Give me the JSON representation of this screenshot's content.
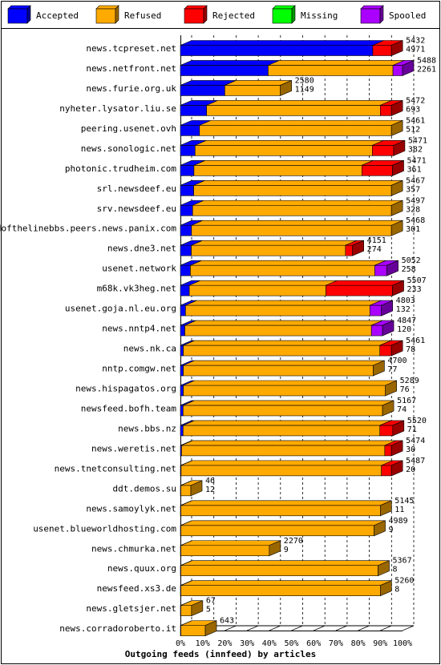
{
  "chart_data": {
    "type": "bar",
    "orientation": "horizontal",
    "stacked": true,
    "xlabel": "Outgoing feeds (innfeed) by articles",
    "xlim": [
      0,
      100
    ],
    "x_ticks": [
      "0%",
      "10%",
      "20%",
      "30%",
      "40%",
      "50%",
      "60%",
      "70%",
      "80%",
      "90%",
      "100%"
    ],
    "grid": true,
    "legend_position": "top",
    "legend": [
      {
        "name": "Accepted",
        "color": "#0000ff"
      },
      {
        "name": "Refused",
        "color": "#ffaa00"
      },
      {
        "name": "Rejected",
        "color": "#ff0000"
      },
      {
        "name": "Missing",
        "color": "#00ff00"
      },
      {
        "name": "Spooled",
        "color": "#aa00ff"
      }
    ],
    "rows": [
      {
        "name": "news.tcpreset.net",
        "total": "5432",
        "accepted": "4971",
        "segments": [
          86.6,
          0.0,
          8.4,
          0,
          0
        ]
      },
      {
        "name": "news.netfront.net",
        "total": "5488",
        "accepted": "2261",
        "segments": [
          39.5,
          56.2,
          0.0,
          0,
          4.3
        ]
      },
      {
        "name": "news.furie.org.uk",
        "total": "2580",
        "accepted": "1149",
        "segments": [
          20.0,
          25.0,
          0.0,
          0,
          0
        ]
      },
      {
        "name": "nyheter.lysator.liu.se",
        "total": "5472",
        "accepted": "693",
        "segments": [
          11.8,
          78.2,
          5.0,
          0,
          0
        ]
      },
      {
        "name": "peering.usenet.ovh",
        "total": "5461",
        "accepted": "512",
        "segments": [
          8.6,
          86.4,
          0,
          0,
          0
        ]
      },
      {
        "name": "news.sonologic.net",
        "total": "5471",
        "accepted": "382",
        "segments": [
          6.6,
          79.8,
          9.6,
          0,
          0
        ]
      },
      {
        "name": "photonic.trudheim.com",
        "total": "5471",
        "accepted": "361",
        "segments": [
          6.1,
          75.6,
          13.8,
          0,
          0
        ]
      },
      {
        "name": "srl.newsdeef.eu",
        "total": "5467",
        "accepted": "357",
        "segments": [
          6.0,
          89.0,
          0,
          0,
          0
        ]
      },
      {
        "name": "srv.newsdeef.eu",
        "total": "5497",
        "accepted": "328",
        "segments": [
          5.5,
          89.5,
          0,
          0,
          0
        ]
      },
      {
        "name": "endofthelinebbs.peers.news.panix.com",
        "total": "5468",
        "accepted": "301",
        "segments": [
          5.0,
          90.0,
          0,
          0,
          0
        ]
      },
      {
        "name": "news.dne3.net",
        "total": "4151",
        "accepted": "274",
        "segments": [
          4.9,
          69.4,
          3.2,
          0,
          0
        ]
      },
      {
        "name": "usenet.network",
        "total": "5052",
        "accepted": "258",
        "segments": [
          4.5,
          83.0,
          0,
          0,
          5.5
        ]
      },
      {
        "name": "m68k.vk3heg.net",
        "total": "5507",
        "accepted": "233",
        "segments": [
          4.0,
          61.5,
          30.0,
          0,
          0
        ]
      },
      {
        "name": "usenet.goja.nl.eu.org",
        "total": "4803",
        "accepted": "132",
        "segments": [
          2.3,
          83.0,
          0,
          0,
          5.2
        ]
      },
      {
        "name": "news.nntp4.net",
        "total": "4847",
        "accepted": "120",
        "segments": [
          2.0,
          84.0,
          0,
          0,
          5.0
        ]
      },
      {
        "name": "news.nk.ca",
        "total": "5461",
        "accepted": "78",
        "segments": [
          1.3,
          88.5,
          5.2,
          0,
          0
        ]
      },
      {
        "name": "nntp.comgw.net",
        "total": "4700",
        "accepted": "77",
        "segments": [
          1.3,
          85.5,
          0,
          0,
          0
        ]
      },
      {
        "name": "news.hispagatos.org",
        "total": "5289",
        "accepted": "76",
        "segments": [
          1.3,
          91.0,
          0,
          0,
          0
        ]
      },
      {
        "name": "newsfeed.bofh.team",
        "total": "5167",
        "accepted": "74",
        "segments": [
          1.2,
          89.8,
          0,
          0,
          0
        ]
      },
      {
        "name": "news.bbs.nz",
        "total": "5520",
        "accepted": "71",
        "segments": [
          1.2,
          88.6,
          5.8,
          0,
          0
        ]
      },
      {
        "name": "news.weretis.net",
        "total": "5474",
        "accepted": "30",
        "segments": [
          0.5,
          91.5,
          3.0,
          0,
          0
        ]
      },
      {
        "name": "news.tnetconsulting.net",
        "total": "5487",
        "accepted": "20",
        "segments": [
          0.3,
          90.2,
          4.5,
          0,
          0
        ]
      },
      {
        "name": "ddt.demos.su",
        "total": "46",
        "accepted": "12",
        "segments": [
          0.2,
          4.5,
          0,
          0,
          0
        ]
      },
      {
        "name": "news.samoylyk.net",
        "total": "5145",
        "accepted": "11",
        "segments": [
          0.2,
          89.8,
          0,
          0,
          0
        ]
      },
      {
        "name": "usenet.blueworldhosting.com",
        "total": "4989",
        "accepted": "9",
        "segments": [
          0.2,
          87.0,
          0,
          0,
          0
        ]
      },
      {
        "name": "news.chmurka.net",
        "total": "2270",
        "accepted": "9",
        "segments": [
          0.2,
          39.8,
          0,
          0,
          0
        ]
      },
      {
        "name": "news.quux.org",
        "total": "5367",
        "accepted": "8",
        "segments": [
          0.2,
          88.8,
          0,
          0,
          0
        ]
      },
      {
        "name": "newsfeed.xs3.de",
        "total": "5260",
        "accepted": "8",
        "segments": [
          0.2,
          89.8,
          0,
          0,
          0
        ]
      },
      {
        "name": "news.gletsjer.net",
        "total": "67",
        "accepted": "5",
        "segments": [
          0.2,
          4.8,
          0,
          0,
          0
        ]
      },
      {
        "name": "news.corradoroberto.it",
        "total": "643",
        "accepted": "",
        "segments": [
          0.2,
          11.0,
          0,
          0,
          0
        ]
      }
    ]
  }
}
